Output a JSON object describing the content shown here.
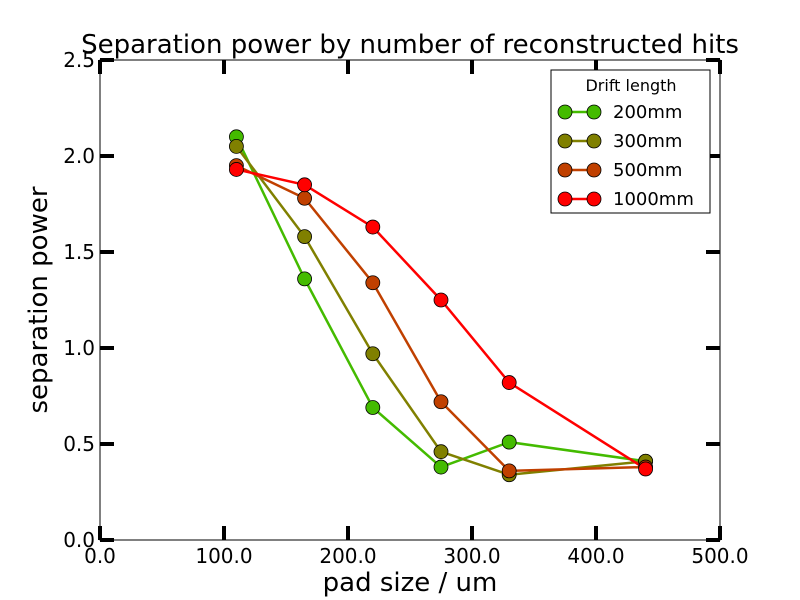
{
  "chart_data": {
    "type": "line",
    "title": "Separation power by number of reconstructed hits",
    "xlabel": "pad size / um",
    "ylabel": "separation power",
    "xlim": [
      0,
      500
    ],
    "ylim": [
      0,
      2.5
    ],
    "x_ticks": [
      0,
      100,
      200,
      300,
      400,
      500
    ],
    "x_tick_labels": [
      "0.0",
      "100.0",
      "200.0",
      "300.0",
      "400.0",
      "500.0"
    ],
    "y_ticks": [
      0,
      0.5,
      1.0,
      1.5,
      2.0,
      2.5
    ],
    "y_tick_labels": [
      "0.0",
      "0.5",
      "1.0",
      "1.5",
      "2.0",
      "2.5"
    ],
    "legend_title": "Drift length",
    "legend_position": "top-right",
    "x": [
      110,
      165,
      220,
      275,
      330,
      440
    ],
    "series": [
      {
        "name": "200mm",
        "color": "#44bb00",
        "values": [
          2.1,
          1.36,
          0.69,
          0.38,
          0.51,
          0.41
        ]
      },
      {
        "name": "300mm",
        "color": "#808000",
        "values": [
          2.05,
          1.58,
          0.97,
          0.46,
          0.34,
          0.41
        ]
      },
      {
        "name": "500mm",
        "color": "#c04000",
        "values": [
          1.95,
          1.78,
          1.34,
          0.72,
          0.36,
          0.38
        ]
      },
      {
        "name": "1000mm",
        "color": "#ff0000",
        "values": [
          1.93,
          1.85,
          1.63,
          1.25,
          0.82,
          0.37
        ]
      }
    ]
  }
}
